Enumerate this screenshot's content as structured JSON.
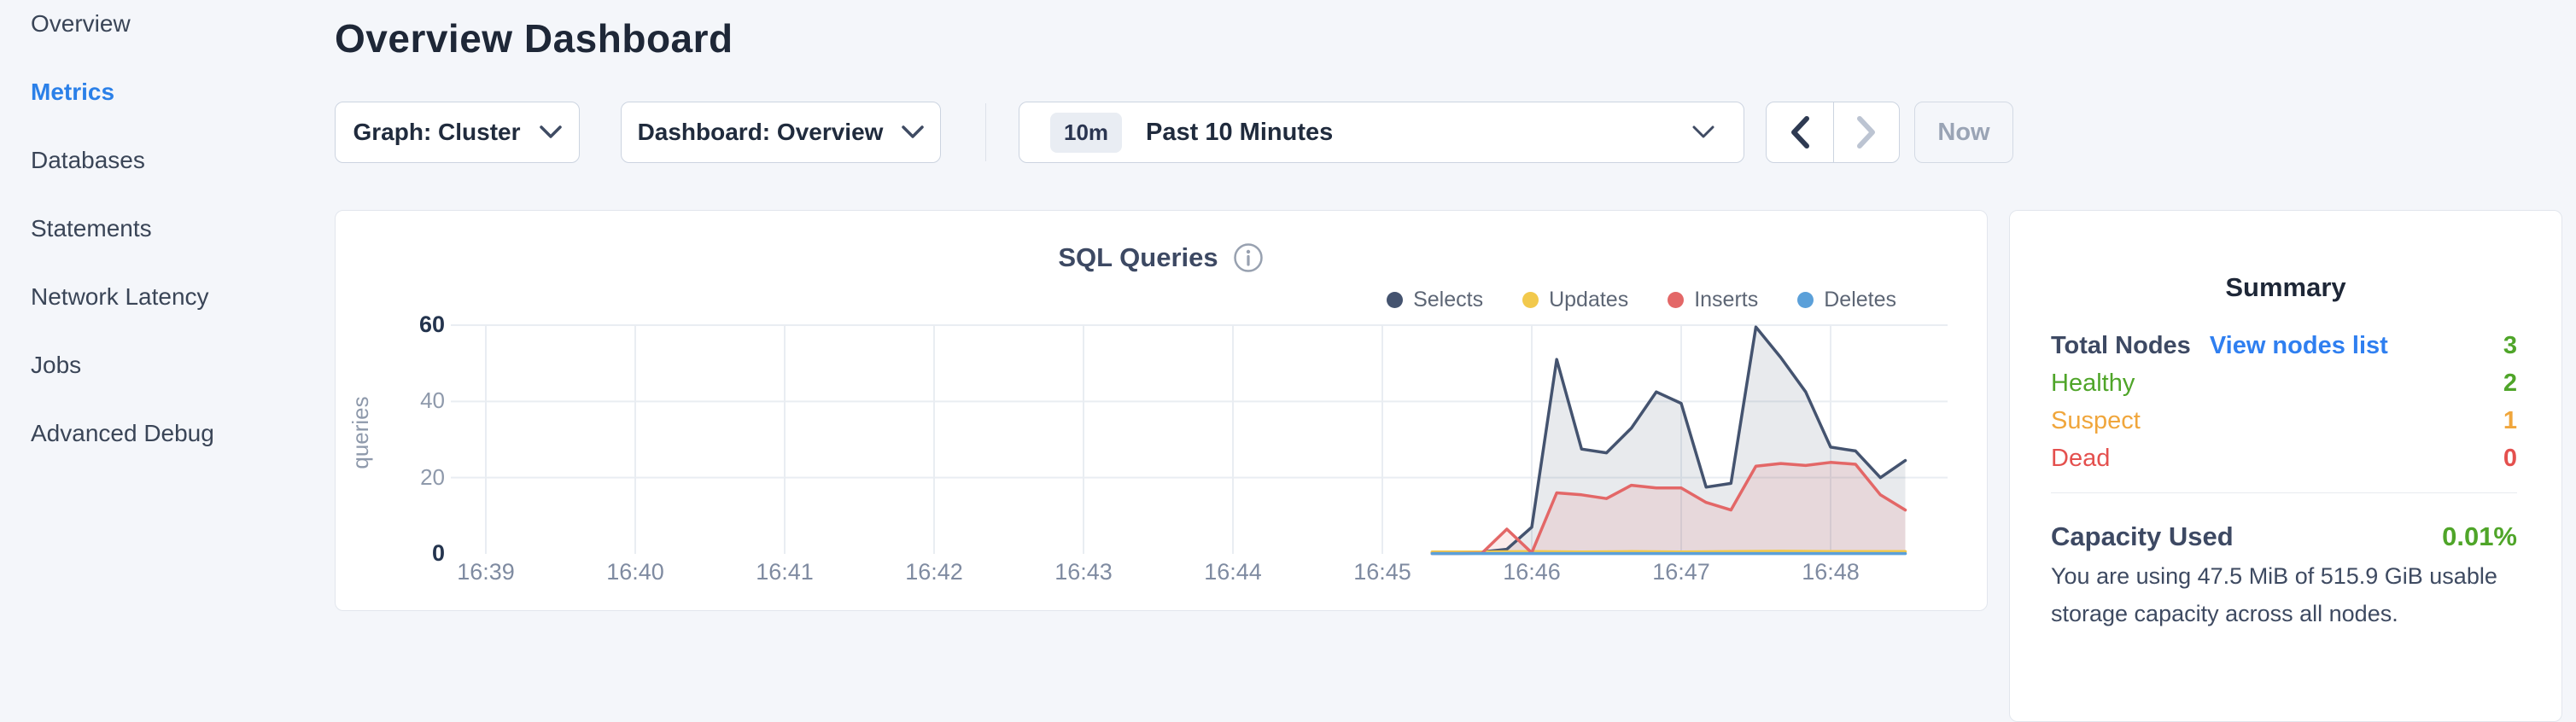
{
  "colors": {
    "accent": "#2b80e8",
    "link": "#2f7ff0",
    "green": "#4fa529",
    "orange": "#f0a63c",
    "red": "#e4504e",
    "grid": "#e9edf2"
  },
  "sidebar": {
    "items": [
      {
        "label": "Overview",
        "active": false
      },
      {
        "label": "Metrics",
        "active": true
      },
      {
        "label": "Databases",
        "active": false
      },
      {
        "label": "Statements",
        "active": false
      },
      {
        "label": "Network Latency",
        "active": false
      },
      {
        "label": "Jobs",
        "active": false
      },
      {
        "label": "Advanced Debug",
        "active": false
      }
    ]
  },
  "header": {
    "title": "Overview Dashboard"
  },
  "toolbar": {
    "graph_dropdown": {
      "label": "Graph: Cluster"
    },
    "dashboard_dropdown": {
      "label": "Dashboard: Overview"
    },
    "time_picker": {
      "badge": "10m",
      "label": "Past 10 Minutes"
    },
    "now_label": "Now"
  },
  "chart": {
    "title": "SQL Queries",
    "ylabel": "queries"
  },
  "chart_data": {
    "type": "area",
    "title": "SQL Queries",
    "xlabel": "",
    "ylabel": "queries",
    "ylim": [
      0,
      60
    ],
    "yticks": [
      0,
      20,
      40,
      60
    ],
    "xticks": [
      "16:39",
      "16:40",
      "16:41",
      "16:42",
      "16:43",
      "16:44",
      "16:45",
      "16:46",
      "16:47",
      "16:48"
    ],
    "grid": true,
    "legend_position": "top-right",
    "series": [
      {
        "name": "Selects",
        "color": "#44536f",
        "fill": "rgba(68,83,111,0.12)",
        "points": [
          [
            "16:45:20",
            0.3
          ],
          [
            "16:45:30",
            0.3
          ],
          [
            "16:45:40",
            0.5
          ],
          [
            "16:45:50",
            1.2
          ],
          [
            "16:46:00",
            7
          ],
          [
            "16:46:10",
            51
          ],
          [
            "16:46:20",
            27.5
          ],
          [
            "16:46:30",
            26.5
          ],
          [
            "16:46:40",
            33
          ],
          [
            "16:46:50",
            42.5
          ],
          [
            "16:47:00",
            39.5
          ],
          [
            "16:47:10",
            17.5
          ],
          [
            "16:47:20",
            18.5
          ],
          [
            "16:47:30",
            59.5
          ],
          [
            "16:47:40",
            51.5
          ],
          [
            "16:47:50",
            42.5
          ],
          [
            "16:48:00",
            28
          ],
          [
            "16:48:10",
            27
          ],
          [
            "16:48:20",
            20
          ],
          [
            "16:48:30",
            24.5
          ]
        ]
      },
      {
        "name": "Updates",
        "color": "#f2c94c",
        "fill": "none",
        "points": [
          [
            "16:45:20",
            0.5
          ],
          [
            "16:45:40",
            0.5
          ],
          [
            "16:46:00",
            0.6
          ],
          [
            "16:46:20",
            0.5
          ],
          [
            "16:46:40",
            0.6
          ],
          [
            "16:47:00",
            0.5
          ],
          [
            "16:47:20",
            0.6
          ],
          [
            "16:47:40",
            0.7
          ],
          [
            "16:48:00",
            0.6
          ],
          [
            "16:48:30",
            0.6
          ]
        ]
      },
      {
        "name": "Inserts",
        "color": "#e36767",
        "fill": "rgba(227,103,103,0.13)",
        "points": [
          [
            "16:45:20",
            0.1
          ],
          [
            "16:45:30",
            0.1
          ],
          [
            "16:45:40",
            0.2
          ],
          [
            "16:45:50",
            6.5
          ],
          [
            "16:46:00",
            0.3
          ],
          [
            "16:46:10",
            16
          ],
          [
            "16:46:20",
            15.5
          ],
          [
            "16:46:30",
            14.5
          ],
          [
            "16:46:40",
            18
          ],
          [
            "16:46:50",
            17.3
          ],
          [
            "16:47:00",
            17.3
          ],
          [
            "16:47:10",
            13.5
          ],
          [
            "16:47:20",
            11.5
          ],
          [
            "16:47:30",
            23
          ],
          [
            "16:47:40",
            23.7
          ],
          [
            "16:47:50",
            23.2
          ],
          [
            "16:48:00",
            24
          ],
          [
            "16:48:10",
            23.5
          ],
          [
            "16:48:20",
            15.5
          ],
          [
            "16:48:30",
            11.5
          ]
        ]
      },
      {
        "name": "Deletes",
        "color": "#5ba0d9",
        "fill": "none",
        "points": [
          [
            "16:45:20",
            0.1
          ],
          [
            "16:46:00",
            0.1
          ],
          [
            "16:47:00",
            0.1
          ],
          [
            "16:48:00",
            0.1
          ],
          [
            "16:48:30",
            0.1
          ]
        ]
      }
    ]
  },
  "summary": {
    "title": "Summary",
    "total": {
      "label": "Total Nodes",
      "link": "View nodes list",
      "value": "3"
    },
    "rows": [
      {
        "label": "Healthy",
        "value": "2",
        "color": "green"
      },
      {
        "label": "Suspect",
        "value": "1",
        "color": "orange"
      },
      {
        "label": "Dead",
        "value": "0",
        "color": "red"
      }
    ],
    "capacity": {
      "label": "Capacity Used",
      "value": "0.01%",
      "description": "You are using 47.5 MiB of 515.9 GiB usable storage capacity across all nodes."
    }
  }
}
